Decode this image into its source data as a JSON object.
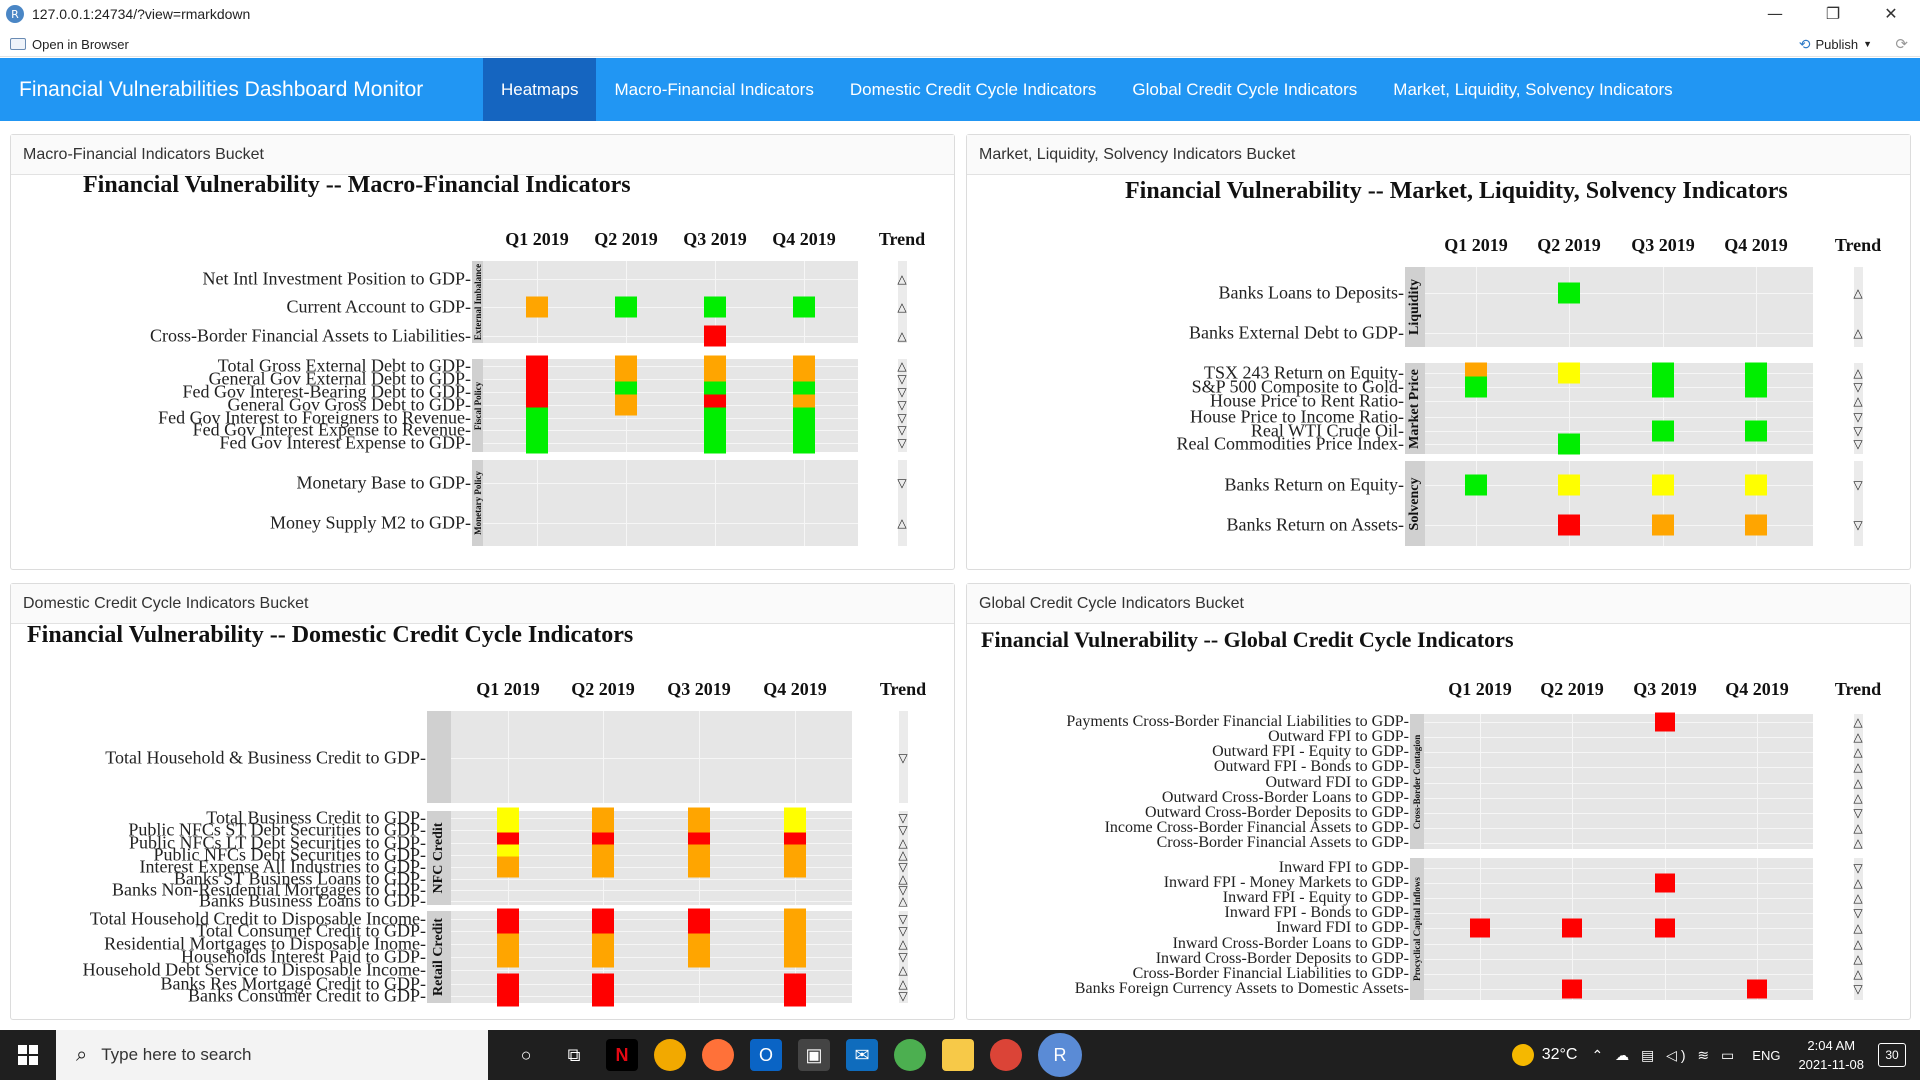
{
  "window": {
    "url": "127.0.0.1:24734/?view=rmarkdown",
    "app_icon": "R",
    "minimize": "—",
    "restore": "❐",
    "close": "✕"
  },
  "toolbar": {
    "open_in_browser": "Open in Browser",
    "publish": "Publish"
  },
  "navbar": {
    "brand": "Financial Vulnerabilities Dashboard Monitor",
    "tabs": [
      "Heatmaps",
      "Macro-Financial Indicators",
      "Domestic Credit Cycle Indicators",
      "Global Credit Cycle Indicators",
      "Market, Liquidity, Solvency Indicators"
    ],
    "active_tab": "Heatmaps"
  },
  "colors": {
    "green": "#00ee00",
    "yellow": "#ffff00",
    "orange": "#ffa500",
    "red": "#ff0000",
    "navbar": "#2196f3",
    "navbar_active": "#1565c0"
  },
  "trend_header": "Trend",
  "panels": [
    {
      "id": "macro",
      "header": "Macro-Financial Indicators Bucket",
      "title": "Financial Vulnerability -- Macro-Financial Indicators",
      "quarters": [
        "Q1 2019",
        "Q2 2019",
        "Q3 2019",
        "Q4 2019"
      ],
      "groups": [
        {
          "strip": "External Imbalance",
          "rows": [
            {
              "label": "Net Intl Investment Position to GDP",
              "cells": [
                null,
                null,
                null,
                null
              ],
              "trend": "up"
            },
            {
              "label": "Current Account to GDP",
              "cells": [
                "orange",
                "green",
                "green",
                "green"
              ],
              "trend": "up"
            },
            {
              "label": "Cross-Border Financial Assets to Liabilities",
              "cells": [
                null,
                null,
                "red",
                null
              ],
              "trend": "up"
            }
          ]
        },
        {
          "strip": "Fiscal Policy",
          "rows": [
            {
              "label": "Total Gross External Debt to GDP",
              "cells": [
                "red",
                "orange",
                "orange",
                "orange"
              ],
              "trend": "up"
            },
            {
              "label": "General Gov External Debt to GDP",
              "cells": [
                "red",
                "orange",
                "orange",
                "orange"
              ],
              "trend": "down"
            },
            {
              "label": "Fed Gov Interest-Bearing Debt to GDP",
              "cells": [
                "red",
                "green",
                "green",
                "green"
              ],
              "trend": "down"
            },
            {
              "label": "General Gov Gross Debt to GDP",
              "cells": [
                "red",
                "orange",
                "red",
                "orange"
              ],
              "trend": "down"
            },
            {
              "label": "Fed Gov Interest to Foreigners to Revenue",
              "cells": [
                "green",
                null,
                "green",
                "green"
              ],
              "trend": "down"
            },
            {
              "label": "Fed Gov Interest Expense to Revenue",
              "cells": [
                "green",
                null,
                "green",
                "green"
              ],
              "trend": "down"
            },
            {
              "label": "Fed Gov Interest Expense to GDP",
              "cells": [
                "green",
                null,
                "green",
                "green"
              ],
              "trend": "down"
            }
          ]
        },
        {
          "strip": "Monetary Policy",
          "rows": [
            {
              "label": "Monetary Base to GDP",
              "cells": [
                null,
                null,
                null,
                null
              ],
              "trend": "down"
            },
            {
              "label": "Money Supply M2 to GDP",
              "cells": [
                null,
                null,
                null,
                null
              ],
              "trend": "up"
            }
          ]
        }
      ]
    },
    {
      "id": "market",
      "header": "Market, Liquidity, Solvency Indicators Bucket",
      "title": "Financial Vulnerability -- Market, Liquidity, Solvency Indicators",
      "quarters": [
        "Q1 2019",
        "Q2 2019",
        "Q3 2019",
        "Q4 2019"
      ],
      "groups": [
        {
          "strip": "Liquidity",
          "rows": [
            {
              "label": "Banks Loans to Deposits",
              "cells": [
                null,
                "green",
                null,
                null
              ],
              "trend": "up"
            },
            {
              "label": "Banks External Debt to GDP",
              "cells": [
                null,
                null,
                null,
                null
              ],
              "trend": "up"
            }
          ]
        },
        {
          "strip": "Market Price",
          "rows": [
            {
              "label": "TSX 243 Return on Equity",
              "cells": [
                "orange",
                "yellow",
                "green",
                "green"
              ],
              "trend": "up"
            },
            {
              "label": "S&P 500 Composite to Gold",
              "cells": [
                "green",
                null,
                "green",
                "green"
              ],
              "trend": "down"
            },
            {
              "label": "House Price to Rent Ratio",
              "cells": [
                null,
                null,
                null,
                null
              ],
              "trend": "up"
            },
            {
              "label": "House Price to Income Ratio",
              "cells": [
                null,
                null,
                null,
                null
              ],
              "trend": "down"
            },
            {
              "label": "Real WTI Crude Oil",
              "cells": [
                null,
                null,
                "green",
                "green"
              ],
              "trend": "down"
            },
            {
              "label": "Real Commodities Price Index",
              "cells": [
                null,
                "green",
                null,
                null
              ],
              "trend": "down"
            }
          ]
        },
        {
          "strip": "Solvency",
          "rows": [
            {
              "label": "Banks Return on Equity",
              "cells": [
                "green",
                "yellow",
                "yellow",
                "yellow"
              ],
              "trend": "down"
            },
            {
              "label": "Banks Return on Assets",
              "cells": [
                null,
                "red",
                "orange",
                "orange"
              ],
              "trend": "down"
            }
          ]
        }
      ]
    },
    {
      "id": "domestic",
      "header": "Domestic Credit Cycle Indicators Bucket",
      "title": "Financial Vulnerability -- Domestic Credit Cycle Indicators",
      "quarters": [
        "Q1 2019",
        "Q2 2019",
        "Q3 2019",
        "Q4 2019"
      ],
      "groups": [
        {
          "strip": "",
          "rows": [
            {
              "label": "Total Household & Business Credit to GDP",
              "cells": [
                null,
                null,
                null,
                null
              ],
              "trend": "down"
            }
          ]
        },
        {
          "strip": "NFC Credit",
          "rows": [
            {
              "label": "Total Business Credit to GDP",
              "cells": [
                "yellow",
                "orange",
                "orange",
                "yellow"
              ],
              "trend": "down"
            },
            {
              "label": "Public NFCs ST Debt Securities to GDP",
              "cells": [
                "yellow",
                "orange",
                "orange",
                "yellow"
              ],
              "trend": "down"
            },
            {
              "label": "Public NFCs LT Debt Securities to GDP",
              "cells": [
                "red",
                "red",
                "red",
                "red"
              ],
              "trend": "up"
            },
            {
              "label": "Public NFCs Debt Securities to GDP",
              "cells": [
                "yellow",
                "orange",
                "orange",
                "orange"
              ],
              "trend": "up"
            },
            {
              "label": "Interest Expense All Industries to GDP",
              "cells": [
                "orange",
                "orange",
                "orange",
                "orange"
              ],
              "trend": "down"
            },
            {
              "label": "Banks ST Business Loans to GDP",
              "cells": [
                null,
                null,
                null,
                null
              ],
              "trend": "up"
            },
            {
              "label": "Banks Non-Residential Mortgages to GDP",
              "cells": [
                null,
                null,
                null,
                null
              ],
              "trend": "down"
            },
            {
              "label": "Banks Business Loans to GDP",
              "cells": [
                null,
                null,
                null,
                null
              ],
              "trend": "up"
            }
          ]
        },
        {
          "strip": "Retail Credit",
          "rows": [
            {
              "label": "Total Household Credit to Disposable Income",
              "cells": [
                "red",
                "red",
                "red",
                "orange"
              ],
              "trend": "down"
            },
            {
              "label": "Total Consumer Credit to GDP",
              "cells": [
                "red",
                "red",
                "red",
                "orange"
              ],
              "trend": "down"
            },
            {
              "label": "Residential Mortgages to Disposable Inome",
              "cells": [
                "orange",
                "orange",
                "orange",
                "orange"
              ],
              "trend": "up"
            },
            {
              "label": "Households Interest Paid to GDP",
              "cells": [
                "orange",
                "orange",
                "orange",
                "orange"
              ],
              "trend": "down"
            },
            {
              "label": "Household Debt Service to Disposable Income",
              "cells": [
                null,
                null,
                null,
                null
              ],
              "trend": "up"
            },
            {
              "label": "Banks Res Mortgage Credit to GDP",
              "cells": [
                "red",
                "red",
                null,
                "red"
              ],
              "trend": "up"
            },
            {
              "label": "Banks Consumer Credit to GDP",
              "cells": [
                "red",
                "red",
                null,
                "red"
              ],
              "trend": "down"
            }
          ]
        }
      ]
    },
    {
      "id": "global",
      "header": "Global Credit Cycle Indicators Bucket",
      "title": "Financial Vulnerability -- Global Credit Cycle Indicators",
      "quarters": [
        "Q1 2019",
        "Q2 2019",
        "Q3 2019",
        "Q4 2019"
      ],
      "groups": [
        {
          "strip": "Cross-Border Contagion",
          "rows": [
            {
              "label": "Payments Cross-Border Financial Liabilities to GDP",
              "cells": [
                null,
                null,
                "red",
                null
              ],
              "trend": "up"
            },
            {
              "label": "Outward FPI to GDP",
              "cells": [
                null,
                null,
                null,
                null
              ],
              "trend": "up"
            },
            {
              "label": "Outward FPI - Equity to GDP",
              "cells": [
                null,
                null,
                null,
                null
              ],
              "trend": "up"
            },
            {
              "label": "Outward FPI - Bonds to GDP",
              "cells": [
                null,
                null,
                null,
                null
              ],
              "trend": "up"
            },
            {
              "label": "Outward FDI to GDP",
              "cells": [
                null,
                null,
                null,
                null
              ],
              "trend": "up"
            },
            {
              "label": "Outward Cross-Border Loans to GDP",
              "cells": [
                null,
                null,
                null,
                null
              ],
              "trend": "up"
            },
            {
              "label": "Outward Cross-Border Deposits to GDP",
              "cells": [
                null,
                null,
                null,
                null
              ],
              "trend": "down"
            },
            {
              "label": "Income Cross-Border Financial Assets to GDP",
              "cells": [
                null,
                null,
                null,
                null
              ],
              "trend": "up"
            },
            {
              "label": "Cross-Border Financial Assets to GDP",
              "cells": [
                null,
                null,
                null,
                null
              ],
              "trend": "up"
            }
          ]
        },
        {
          "strip": "Procyclical Capital Inflows",
          "rows": [
            {
              "label": "Inward FPI to GDP",
              "cells": [
                null,
                null,
                null,
                null
              ],
              "trend": "down"
            },
            {
              "label": "Inward FPI - Money Markets to GDP",
              "cells": [
                null,
                null,
                "red",
                null
              ],
              "trend": "up"
            },
            {
              "label": "Inward FPI - Equity to GDP",
              "cells": [
                null,
                null,
                null,
                null
              ],
              "trend": "up"
            },
            {
              "label": "Inward FPI - Bonds to GDP",
              "cells": [
                null,
                null,
                null,
                null
              ],
              "trend": "down"
            },
            {
              "label": "Inward FDI to GDP",
              "cells": [
                "red",
                "red",
                "red",
                null
              ],
              "trend": "up"
            },
            {
              "label": "Inward Cross-Border Loans to GDP",
              "cells": [
                null,
                null,
                null,
                null
              ],
              "trend": "up"
            },
            {
              "label": "Inward Cross-Border Deposits to GDP",
              "cells": [
                null,
                null,
                null,
                null
              ],
              "trend": "up"
            },
            {
              "label": "Cross-Border Financial Liabilities to GDP",
              "cells": [
                null,
                null,
                null,
                null
              ],
              "trend": "up"
            },
            {
              "label": "Banks Foreign Currency Assets to Domestic Assets",
              "cells": [
                null,
                "red",
                null,
                "red"
              ],
              "trend": "down"
            }
          ]
        }
      ]
    }
  ],
  "taskbar": {
    "search_placeholder": "Type here to search",
    "weather": "32°C",
    "language": "ENG",
    "time": "2:04 AM",
    "date": "2021-11-08",
    "notifications": "30"
  }
}
